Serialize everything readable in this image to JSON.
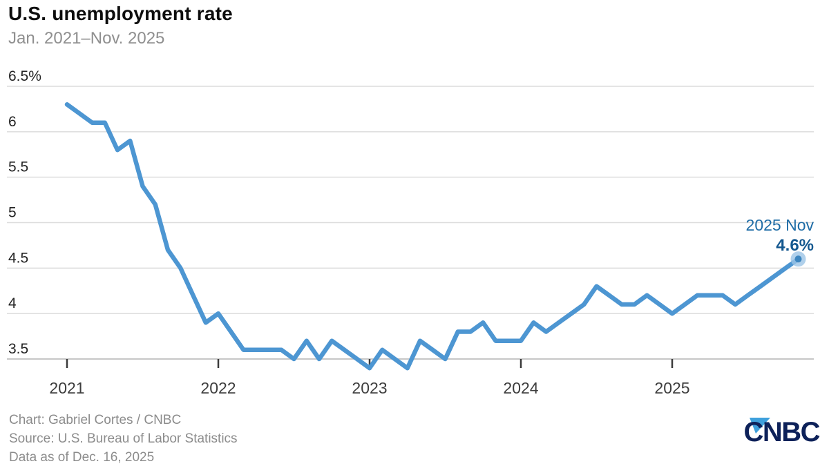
{
  "header": {
    "title": "U.S. unemployment rate",
    "subtitle": "Jan. 2021–Nov. 2025"
  },
  "chart_data": {
    "type": "line",
    "title": "U.S. unemployment rate",
    "subtitle": "Jan. 2021–Nov. 2025",
    "unit": "percent",
    "grid": true,
    "legend": false,
    "ylim": [
      3.3,
      6.6
    ],
    "y_axis": {
      "ticks": [
        6.5,
        6,
        5.5,
        5,
        4.5,
        4,
        3.5
      ],
      "labels": [
        "6.5%",
        "6",
        "5.5",
        "5",
        "4.5",
        "4",
        "3.5"
      ]
    },
    "x_axis": {
      "tick_labels": [
        "2021",
        "2022",
        "2023",
        "2024",
        "2025"
      ]
    },
    "years": [
      {
        "year": "2021",
        "values": [
          6.3,
          6.2,
          6.1,
          6.1,
          5.8,
          5.9,
          5.4,
          5.2,
          4.7,
          4.5,
          4.2,
          3.9
        ]
      },
      {
        "year": "2022",
        "values": [
          4.0,
          3.8,
          3.6,
          3.6,
          3.6,
          3.6,
          3.5,
          3.7,
          3.5,
          3.7,
          3.6,
          3.5
        ]
      },
      {
        "year": "2023",
        "values": [
          3.4,
          3.6,
          3.5,
          3.4,
          3.7,
          3.6,
          3.5,
          3.8,
          3.8,
          3.9,
          3.7,
          3.7
        ]
      },
      {
        "year": "2024",
        "values": [
          3.7,
          3.9,
          3.8,
          3.9,
          4.0,
          4.1,
          4.3,
          4.2,
          4.1,
          4.1,
          4.2,
          4.1
        ]
      },
      {
        "year": "2025",
        "values": [
          4.0,
          4.1,
          4.2,
          4.2,
          4.2,
          4.1,
          4.2,
          4.3,
          4.4,
          4.5,
          4.6
        ]
      }
    ],
    "annotation": {
      "label": "2025 Nov",
      "value": "4.6%"
    },
    "colors": {
      "line": "#4d96d2",
      "dot_center": "#3d86c0",
      "dot_halo": "#9cc4e6",
      "gridline": "#dcdcdc",
      "axis_line": "#c7c7c7",
      "tick": "#3b3b3b",
      "y_label": "#222222",
      "x_label": "#3d3d3d"
    }
  },
  "footer": {
    "credit": "Chart: Gabriel Cortes / CNBC",
    "source": "Source: U.S. Bureau of Labor Statistics",
    "as_of": "Data as of Dec. 16, 2025"
  },
  "logo": {
    "text": "CNBC"
  }
}
